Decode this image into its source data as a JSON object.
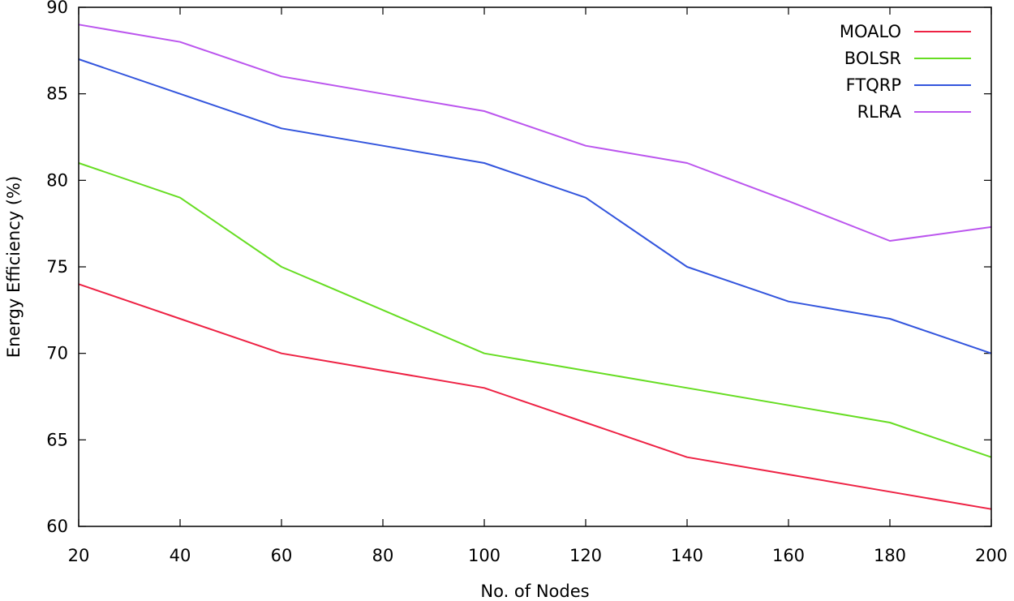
{
  "chart_data": {
    "type": "line",
    "title": "",
    "xlabel": "No. of Nodes",
    "ylabel": "Energy Efficiency (%)",
    "x": [
      20,
      40,
      60,
      80,
      100,
      120,
      140,
      160,
      180,
      200
    ],
    "xlim": [
      20,
      200
    ],
    "ylim": [
      60,
      90
    ],
    "xticks": [
      20,
      40,
      60,
      80,
      100,
      120,
      140,
      160,
      180,
      200
    ],
    "yticks": [
      60,
      65,
      70,
      75,
      80,
      85,
      90
    ],
    "grid": false,
    "legend_position": "top-right",
    "series": [
      {
        "name": "MOALO",
        "color": "#ee2244",
        "values": [
          74,
          72,
          70,
          69,
          68,
          66,
          64,
          63,
          62,
          61
        ]
      },
      {
        "name": "BOLSR",
        "color": "#66dd22",
        "values": [
          81,
          79,
          75,
          72.5,
          70,
          69,
          68,
          67,
          66,
          64
        ]
      },
      {
        "name": "FTQRP",
        "color": "#3355dd",
        "values": [
          87,
          85,
          83,
          82,
          81,
          79,
          75,
          73,
          72,
          70
        ]
      },
      {
        "name": "RLRA",
        "color": "#bb55ee",
        "values": [
          89,
          88,
          86,
          85,
          84,
          82,
          81,
          78.8,
          76.5,
          77.3
        ]
      }
    ]
  }
}
